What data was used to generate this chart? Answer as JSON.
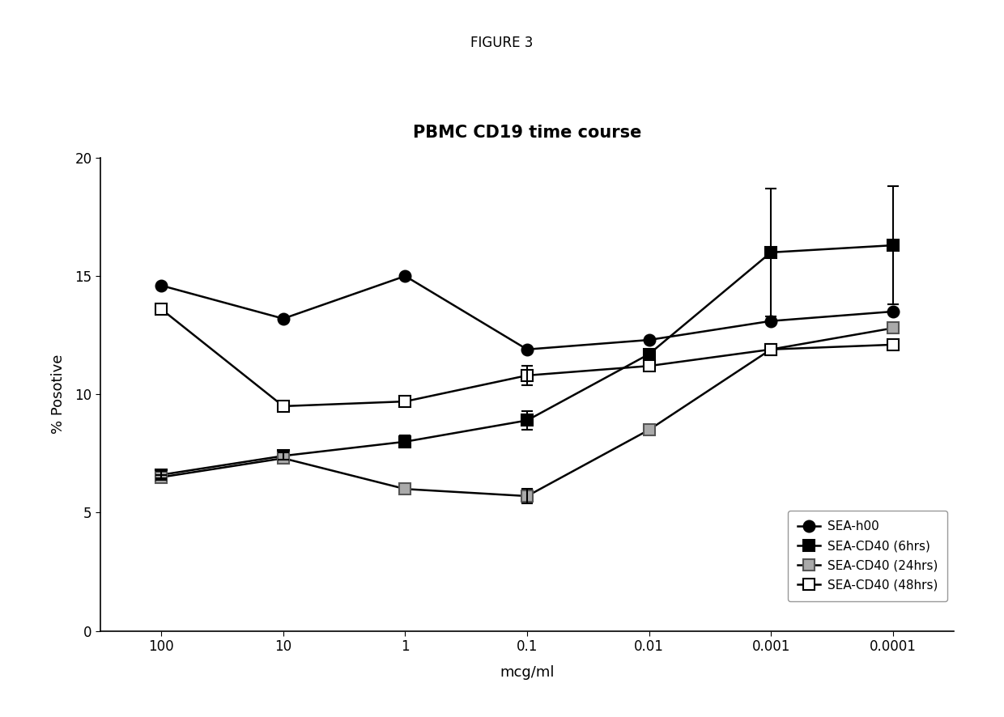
{
  "title": "PBMC CD19 time course",
  "figure_label": "FIGURE 3",
  "xlabel": "mcg/ml",
  "ylabel": "% Posotive",
  "x_labels": [
    "100",
    "10",
    "1",
    "0.1",
    "0.01",
    "0.001",
    "0.0001"
  ],
  "x_positions": [
    0,
    1,
    2,
    3,
    4,
    5,
    6
  ],
  "ylim": [
    0,
    20
  ],
  "yticks": [
    0,
    5,
    10,
    15,
    20
  ],
  "series": [
    {
      "label": "SEA-h00",
      "y": [
        14.6,
        13.2,
        15.0,
        11.9,
        12.3,
        13.1,
        13.5
      ],
      "yerr": [
        null,
        null,
        null,
        null,
        null,
        null,
        null
      ],
      "marker": "o",
      "line_color": "#000000",
      "marker_face": "#000000",
      "marker_edge": "#000000",
      "markersize": 10,
      "linewidth": 1.8
    },
    {
      "label": "SEA-CD40 (6hrs)",
      "y": [
        6.6,
        7.4,
        8.0,
        8.9,
        11.7,
        16.0,
        16.3
      ],
      "yerr": [
        0.15,
        0.15,
        0.25,
        0.4,
        null,
        2.7,
        2.5
      ],
      "marker": "s",
      "line_color": "#000000",
      "marker_face": "#000000",
      "marker_edge": "#000000",
      "markersize": 10,
      "linewidth": 1.8
    },
    {
      "label": "SEA-CD40 (24hrs)",
      "y": [
        6.5,
        7.3,
        6.0,
        5.7,
        8.5,
        11.9,
        12.8
      ],
      "yerr": [
        0.1,
        null,
        null,
        0.3,
        null,
        null,
        null
      ],
      "marker": "s",
      "line_color": "#000000",
      "marker_face": "#aaaaaa",
      "marker_edge": "#555555",
      "markersize": 10,
      "linewidth": 1.8
    },
    {
      "label": "SEA-CD40 (48hrs)",
      "y": [
        13.6,
        9.5,
        9.7,
        10.8,
        11.2,
        11.9,
        12.1
      ],
      "yerr": [
        null,
        null,
        null,
        0.4,
        null,
        null,
        null
      ],
      "marker": "s",
      "line_color": "#000000",
      "marker_face": "#ffffff",
      "marker_edge": "#000000",
      "markersize": 10,
      "linewidth": 1.8
    }
  ],
  "background_color": "#ffffff",
  "title_fontsize": 15,
  "figure_label_fontsize": 12,
  "label_fontsize": 13,
  "tick_fontsize": 12,
  "legend_fontsize": 11
}
